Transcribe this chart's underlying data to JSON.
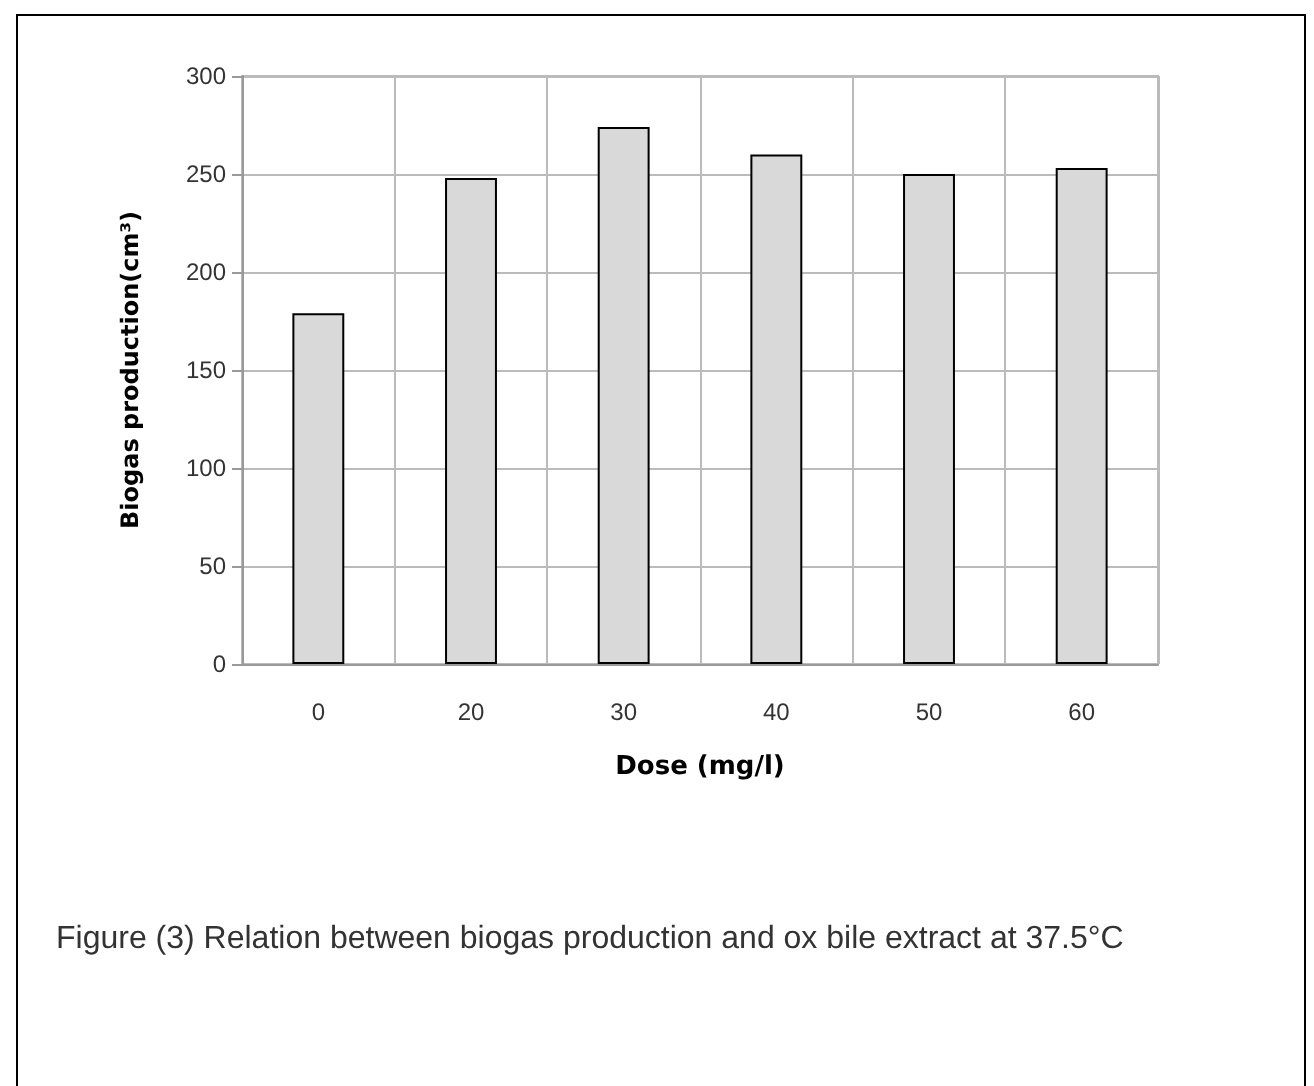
{
  "chart_data": {
    "type": "bar",
    "xlabel": "Dose (mg/l)",
    "ylabel": "Biogas production(cm³)",
    "categories": [
      "0",
      "20",
      "30",
      "40",
      "50",
      "60"
    ],
    "values": [
      179,
      248,
      274,
      260,
      250,
      253
    ],
    "color": "#d9d9d9",
    "ylim": [
      0,
      300
    ],
    "yticks": [
      0,
      50,
      100,
      150,
      200,
      250,
      300
    ],
    "grid": true,
    "annotations": [
      "Figure (3) Relation between biogas production and ox bile extract at 37.5°C"
    ]
  }
}
